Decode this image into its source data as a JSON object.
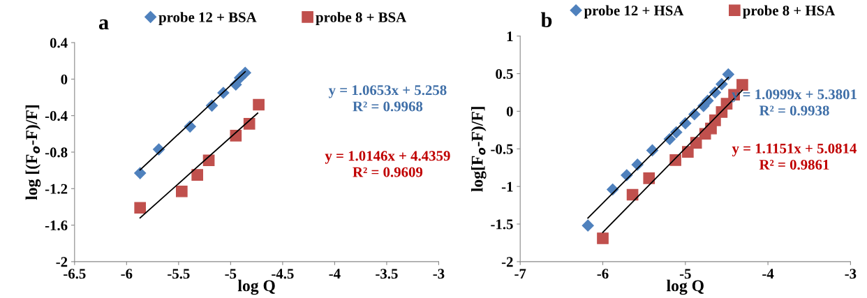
{
  "chart_data": [
    {
      "type": "scatter",
      "title": "a",
      "xlabel": "log Q",
      "ylabel": "log [(F$_{o}$-F)/F]",
      "xlim": [
        -6.5,
        -3
      ],
      "xticks": [
        -6.5,
        -6,
        -5.5,
        -5,
        -4.5,
        -4,
        -3.5,
        -3
      ],
      "ylim": [
        -2,
        0.4
      ],
      "yticks": [
        -2,
        -1.6,
        -1.2,
        -0.8,
        -0.4,
        0,
        0.4
      ],
      "grid": false,
      "legend": "top",
      "series": [
        {
          "name": "probe 12 + BSA",
          "color": "#4f81bd",
          "marker": "diamond",
          "x": [
            -5.87,
            -5.69,
            -5.39,
            -5.18,
            -5.07,
            -4.95,
            -4.91,
            -4.86
          ],
          "values": [
            -1.03,
            -0.77,
            -0.52,
            -0.29,
            -0.15,
            -0.06,
            0.015,
            0.07
          ]
        },
        {
          "name": "probe 8 + BSA",
          "color": "#c0504d",
          "marker": "square",
          "x": [
            -5.87,
            -5.47,
            -5.32,
            -5.21,
            -4.95,
            -4.82,
            -4.73
          ],
          "values": [
            -1.41,
            -1.23,
            -1.05,
            -0.89,
            -0.62,
            -0.49,
            -0.28
          ]
        },
        {
          "type": "line",
          "color": "#000000",
          "marker": "none",
          "x": [
            -5.87,
            -4.86
          ],
          "values": [
            -0.995,
            0.081
          ]
        },
        {
          "type": "line",
          "color": "#000000",
          "marker": "none",
          "x": [
            -5.87,
            -4.74
          ],
          "values": [
            -1.52,
            -0.373
          ]
        }
      ],
      "annotations": [
        "y = 1.0653x + 5.258\nR² = 0.9968",
        "y = 1.0146x + 4.4359\nR² = 0.9609"
      ]
    },
    {
      "type": "scatter",
      "title": "b",
      "xlabel": "log Q",
      "ylabel": "log[F$_{o}$-F)/F]",
      "xlim": [
        -7,
        -3
      ],
      "xticks": [
        -7,
        -6,
        -5,
        -4,
        -3
      ],
      "ylim": [
        -2,
        1
      ],
      "yticks": [
        -2,
        -1.5,
        -1,
        -0.5,
        0,
        0.5,
        1
      ],
      "grid": false,
      "legend": "top",
      "series": [
        {
          "name": "probe 12 + HSA",
          "color": "#4f81bd",
          "marker": "diamond",
          "x": [
            -6.18,
            -5.88,
            -5.71,
            -5.58,
            -5.4,
            -5.19,
            -5.11,
            -5.0,
            -4.89,
            -4.78,
            -4.73,
            -4.64,
            -4.56,
            -4.48
          ],
          "values": [
            -1.52,
            -1.04,
            -0.85,
            -0.71,
            -0.52,
            -0.37,
            -0.28,
            -0.16,
            -0.04,
            0.07,
            0.14,
            0.25,
            0.36,
            0.49
          ]
        },
        {
          "name": "probe 8 + HSA",
          "color": "#c0504d",
          "marker": "square",
          "x": [
            -6.0,
            -5.64,
            -5.44,
            -5.12,
            -4.97,
            -4.87,
            -4.76,
            -4.69,
            -4.64,
            -4.56,
            -4.5,
            -4.41,
            -4.31
          ],
          "values": [
            -1.69,
            -1.11,
            -0.89,
            -0.65,
            -0.54,
            -0.42,
            -0.3,
            -0.23,
            -0.12,
            -0.01,
            0.1,
            0.22,
            0.35
          ]
        },
        {
          "type": "line",
          "color": "#000000",
          "marker": "none",
          "x": [
            -6.18,
            -4.48
          ],
          "values": [
            -1.42,
            0.45
          ]
        },
        {
          "type": "line",
          "color": "#000000",
          "marker": "none",
          "x": [
            -6.0,
            -4.31
          ],
          "values": [
            -1.61,
            0.28
          ]
        }
      ],
      "annotations": [
        "y = 1.0999x + 5.3801\nR² = 0.9938",
        "y = 1.1151x + 5.0814\nR² = 0.9861"
      ]
    }
  ]
}
